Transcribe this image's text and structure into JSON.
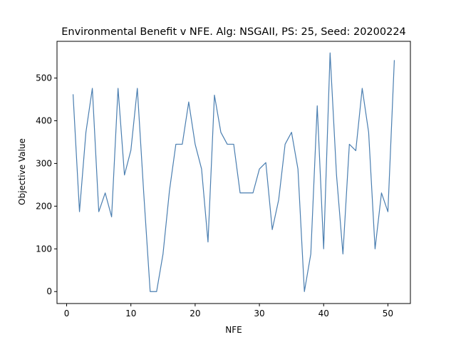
{
  "chart_data": {
    "type": "line",
    "title": "Environmental Benefit v NFE. Alg: NSGAII, PS: 25, Seed: 20200224",
    "xlabel": "NFE",
    "ylabel": "Objective Value",
    "xlim": [
      -1.5,
      53.5
    ],
    "ylim": [
      -28,
      586
    ],
    "xticks": [
      0,
      10,
      20,
      30,
      40,
      50
    ],
    "yticks": [
      0,
      100,
      200,
      300,
      400,
      500
    ],
    "grid": false,
    "line_color": "#4a7eb0",
    "series": [
      {
        "x": [
          1,
          2,
          3,
          4,
          5,
          6,
          7,
          8,
          9,
          10,
          11,
          12,
          13,
          14,
          15,
          16,
          17,
          18,
          19,
          20,
          21,
          22,
          23,
          24,
          25,
          26,
          27,
          28,
          29,
          30,
          31,
          32,
          33,
          34,
          35,
          36,
          37,
          38,
          39,
          40,
          41,
          42,
          43,
          44,
          45,
          46,
          47,
          48,
          49,
          50,
          51
        ],
        "values": [
          462,
          187,
          373,
          476,
          187,
          231,
          175,
          476,
          273,
          331,
          476,
          230,
          0,
          0,
          88,
          236,
          345,
          345,
          444,
          345,
          287,
          116,
          460,
          373,
          345,
          345,
          231,
          231,
          231,
          287,
          302,
          145,
          215,
          345,
          373,
          287,
          0,
          88,
          435,
          100,
          559,
          273,
          88,
          345,
          330,
          476,
          373,
          100,
          231,
          187,
          542
        ]
      }
    ]
  }
}
